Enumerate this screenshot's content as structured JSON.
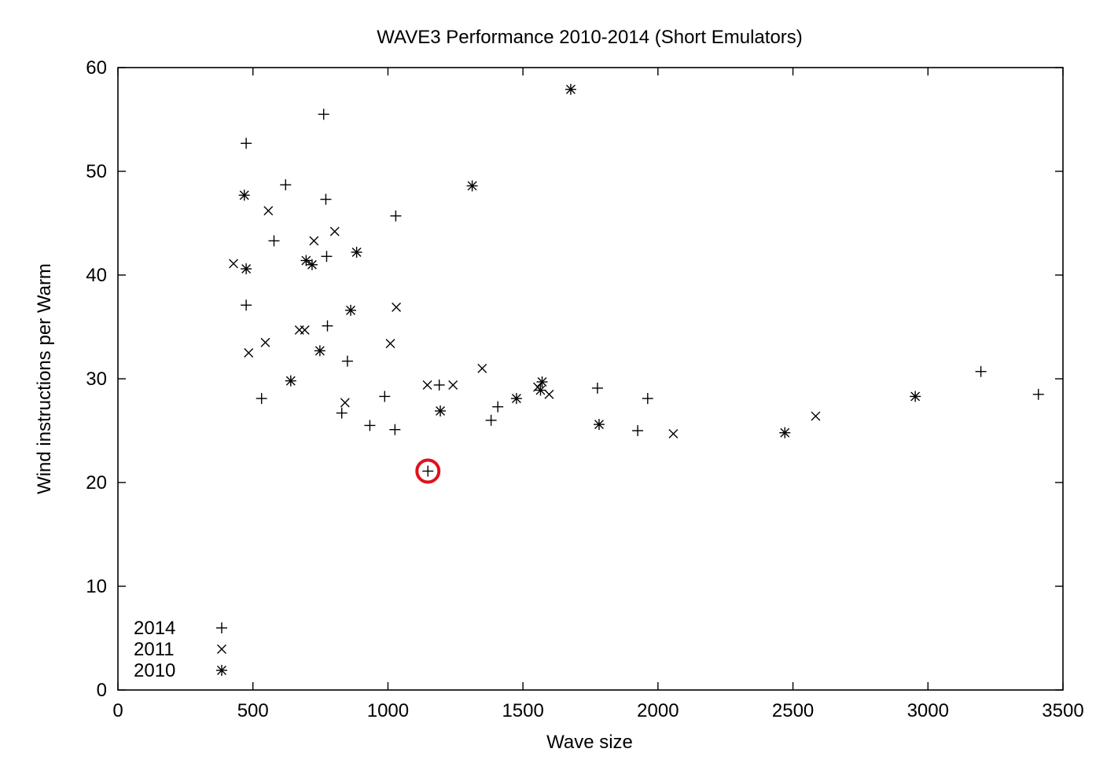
{
  "chart_data": {
    "type": "scatter",
    "title": "WAVE3 Performance 2010-2014 (Short Emulators)",
    "xlabel": "Wave size",
    "ylabel": "Wind instructions per Warm",
    "xlim": [
      0,
      3500
    ],
    "ylim": [
      0,
      60
    ],
    "xticks": [
      0,
      500,
      1000,
      1500,
      2000,
      2500,
      3000,
      3500
    ],
    "yticks": [
      0,
      10,
      20,
      30,
      40,
      50,
      60
    ],
    "grid": false,
    "legend_position": "bottom-left",
    "series": [
      {
        "name": "2014",
        "marker": "plus",
        "points": [
          [
            475,
            52.7
          ],
          [
            762,
            55.5
          ],
          [
            621,
            48.7
          ],
          [
            770,
            47.3
          ],
          [
            1029,
            45.7
          ],
          [
            578,
            43.3
          ],
          [
            773,
            41.8
          ],
          [
            475,
            37.1
          ],
          [
            776,
            35.1
          ],
          [
            850,
            31.7
          ],
          [
            532,
            28.1
          ],
          [
            829,
            26.7
          ],
          [
            988,
            28.3
          ],
          [
            933,
            25.5
          ],
          [
            1026,
            25.1
          ],
          [
            1190,
            29.4
          ],
          [
            1407,
            27.3
          ],
          [
            1382,
            26.0
          ],
          [
            1776,
            29.1
          ],
          [
            1962,
            28.1
          ],
          [
            1925,
            25.0
          ],
          [
            3196,
            30.7
          ],
          [
            3409,
            28.5
          ],
          [
            1148,
            21.1
          ]
        ]
      },
      {
        "name": "2011",
        "marker": "cross",
        "points": [
          [
            557,
            46.2
          ],
          [
            428,
            41.1
          ],
          [
            726,
            43.3
          ],
          [
            803,
            44.2
          ],
          [
            546,
            33.5
          ],
          [
            484,
            32.5
          ],
          [
            672,
            34.7
          ],
          [
            692,
            34.7
          ],
          [
            1009,
            33.4
          ],
          [
            1031,
            36.9
          ],
          [
            841,
            27.7
          ],
          [
            1146,
            29.4
          ],
          [
            1241,
            29.4
          ],
          [
            1349,
            31.0
          ],
          [
            1555,
            29.2
          ],
          [
            1597,
            28.5
          ],
          [
            2057,
            24.7
          ],
          [
            2584,
            26.4
          ]
        ]
      },
      {
        "name": "2010",
        "marker": "star",
        "points": [
          [
            468,
            47.7
          ],
          [
            475,
            40.6
          ],
          [
            697,
            41.4
          ],
          [
            719,
            41.0
          ],
          [
            884,
            42.2
          ],
          [
            862,
            36.6
          ],
          [
            748,
            32.7
          ],
          [
            640,
            29.8
          ],
          [
            1312,
            48.6
          ],
          [
            1677,
            57.9
          ],
          [
            1194,
            26.9
          ],
          [
            1476,
            28.1
          ],
          [
            1571,
            29.7
          ],
          [
            1565,
            28.9
          ],
          [
            1782,
            25.6
          ],
          [
            2470,
            24.8
          ],
          [
            2953,
            28.3
          ]
        ]
      }
    ],
    "annotations": [
      {
        "type": "circle",
        "color": "#e0101e",
        "x": 1148,
        "y": 21.1
      }
    ]
  }
}
